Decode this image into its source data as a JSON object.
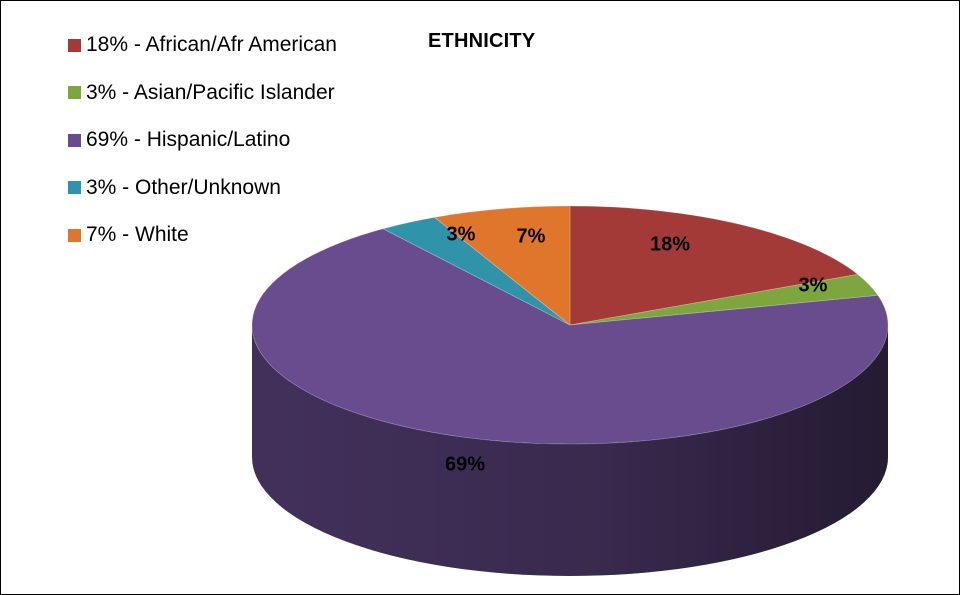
{
  "chart_data": {
    "type": "pie",
    "title": "ETHNICITY",
    "categories": [
      "African/Afr American",
      "Asian/Pacific Islander",
      "Hispanic/Latino",
      "Other/Unknown",
      "White"
    ],
    "values": [
      18,
      3,
      69,
      3,
      7
    ],
    "data_labels": [
      "18%",
      "3%",
      "69%",
      "3%",
      "7%"
    ],
    "legend": {
      "placement": "top-left",
      "entries": [
        "18% - African/Afr American",
        "3% - Asian/Pacific Islander",
        "69% - Hispanic/Latino",
        "3% - Other/Unknown",
        "7% - White"
      ]
    },
    "style": "3d",
    "colors": [
      "#a33a37",
      "#7da63f",
      "#684c8e",
      "#2f94aa",
      "#e0762c"
    ]
  }
}
